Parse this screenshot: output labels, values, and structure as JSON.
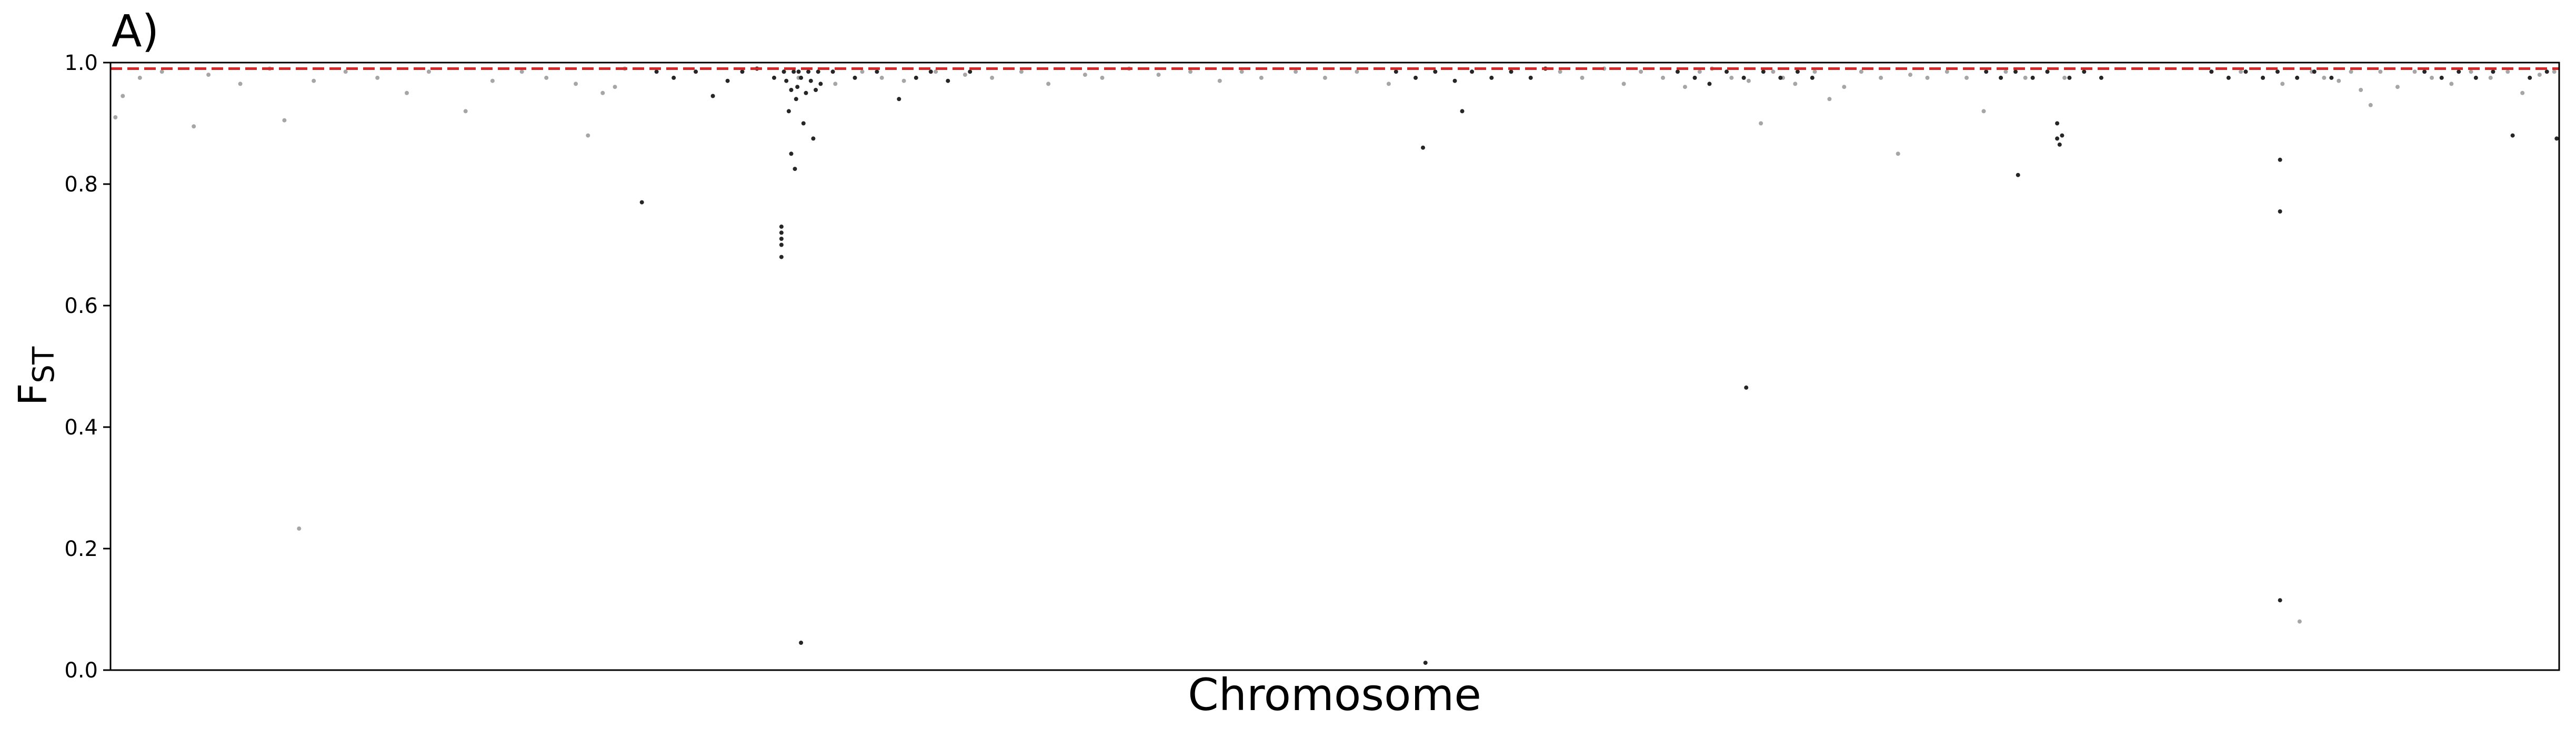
{
  "chart_data": {
    "type": "scatter",
    "panel_label": "A)",
    "xlabel": "Chromosome",
    "ylabel_main": "F",
    "ylabel_sub": "ST",
    "ylim": [
      0.0,
      1.0
    ],
    "x_ticks_shown": false,
    "grid": false,
    "threshold_line": {
      "value": 0.99,
      "color": "#d62728",
      "style": "dashed"
    },
    "alternating_colors": [
      "#a6a6a6",
      "#262626"
    ],
    "y_ticks": [
      {
        "value": 0.0,
        "label": "0.0"
      },
      {
        "value": 0.2,
        "label": "0.2"
      },
      {
        "value": 0.4,
        "label": "0.4"
      },
      {
        "value": 0.6,
        "label": "0.6"
      },
      {
        "value": 0.8,
        "label": "0.8"
      },
      {
        "value": 1.0,
        "label": "1.0"
      }
    ],
    "series": [
      {
        "color": "#a6a6a6",
        "points": [
          [
            0.2,
            0.91
          ],
          [
            0.5,
            0.945
          ],
          [
            1.2,
            0.975
          ],
          [
            2.1,
            0.985
          ],
          [
            3.4,
            0.895
          ],
          [
            4.0,
            0.98
          ],
          [
            5.3,
            0.965
          ],
          [
            6.5,
            0.99
          ],
          [
            7.1,
            0.905
          ],
          [
            7.7,
            0.233
          ],
          [
            8.3,
            0.97
          ],
          [
            9.6,
            0.985
          ],
          [
            10.9,
            0.975
          ],
          [
            12.1,
            0.95
          ],
          [
            13.0,
            0.985
          ],
          [
            14.5,
            0.92
          ],
          [
            15.6,
            0.97
          ],
          [
            16.8,
            0.985
          ],
          [
            17.8,
            0.975
          ],
          [
            19.0,
            0.965
          ],
          [
            19.5,
            0.88
          ],
          [
            20.1,
            0.95
          ],
          [
            20.6,
            0.96
          ],
          [
            21.0,
            0.99
          ],
          [
            27.5,
            0.985
          ],
          [
            28.1,
            0.975
          ],
          [
            29.6,
            0.965
          ],
          [
            30.7,
            0.985
          ],
          [
            31.5,
            0.975
          ],
          [
            32.4,
            0.97
          ],
          [
            33.7,
            0.985
          ],
          [
            34.9,
            0.98
          ],
          [
            36.0,
            0.975
          ],
          [
            37.2,
            0.985
          ],
          [
            38.3,
            0.965
          ],
          [
            39.8,
            0.98
          ],
          [
            40.5,
            0.975
          ],
          [
            41.6,
            0.99
          ],
          [
            42.8,
            0.98
          ],
          [
            44.1,
            0.985
          ],
          [
            45.3,
            0.97
          ],
          [
            46.2,
            0.985
          ],
          [
            47.0,
            0.975
          ],
          [
            48.4,
            0.985
          ],
          [
            49.6,
            0.975
          ],
          [
            50.9,
            0.985
          ],
          [
            52.2,
            0.965
          ],
          [
            59.2,
            0.985
          ],
          [
            60.1,
            0.975
          ],
          [
            61.0,
            0.99
          ],
          [
            61.8,
            0.965
          ],
          [
            62.5,
            0.985
          ],
          [
            63.4,
            0.975
          ],
          [
            64.3,
            0.96
          ],
          [
            64.9,
            0.985
          ],
          [
            65.4,
            0.99
          ],
          [
            66.2,
            0.975
          ],
          [
            66.9,
            0.97
          ],
          [
            67.4,
            0.9
          ],
          [
            67.9,
            0.985
          ],
          [
            68.3,
            0.975
          ],
          [
            68.8,
            0.965
          ],
          [
            69.6,
            0.985
          ],
          [
            70.2,
            0.94
          ],
          [
            70.8,
            0.96
          ],
          [
            71.5,
            0.985
          ],
          [
            72.3,
            0.975
          ],
          [
            73.0,
            0.85
          ],
          [
            73.5,
            0.98
          ],
          [
            74.2,
            0.975
          ],
          [
            75.0,
            0.985
          ],
          [
            75.8,
            0.975
          ],
          [
            76.5,
            0.92
          ],
          [
            77.4,
            0.985
          ],
          [
            78.2,
            0.975
          ],
          [
            79.1,
            0.985
          ],
          [
            79.8,
            0.975
          ],
          [
            87.0,
            0.985
          ],
          [
            87.9,
            0.975
          ],
          [
            88.7,
            0.965
          ],
          [
            89.4,
            0.08
          ],
          [
            89.9,
            0.985
          ],
          [
            90.4,
            0.975
          ],
          [
            91.0,
            0.97
          ],
          [
            91.5,
            0.985
          ],
          [
            91.9,
            0.955
          ],
          [
            92.3,
            0.93
          ],
          [
            92.7,
            0.985
          ],
          [
            93.4,
            0.96
          ],
          [
            94.1,
            0.985
          ],
          [
            94.8,
            0.975
          ],
          [
            95.6,
            0.965
          ],
          [
            96.4,
            0.985
          ],
          [
            97.2,
            0.975
          ],
          [
            97.9,
            0.985
          ],
          [
            98.5,
            0.95
          ],
          [
            99.2,
            0.98
          ],
          [
            99.8,
            0.985
          ]
        ]
      },
      {
        "color": "#262626",
        "points": [
          [
            21.7,
            0.77
          ],
          [
            22.3,
            0.985
          ],
          [
            23.0,
            0.975
          ],
          [
            23.9,
            0.985
          ],
          [
            24.6,
            0.945
          ],
          [
            25.2,
            0.97
          ],
          [
            25.8,
            0.985
          ],
          [
            26.4,
            0.99
          ],
          [
            27.1,
            0.975
          ],
          [
            27.5,
            0.985
          ],
          [
            27.6,
            0.97
          ],
          [
            27.7,
            0.92
          ],
          [
            27.8,
            0.955
          ],
          [
            27.9,
            0.985
          ],
          [
            28.0,
            0.94
          ],
          [
            28.05,
            0.96
          ],
          [
            28.1,
            0.985
          ],
          [
            28.2,
            0.975
          ],
          [
            28.3,
            0.9
          ],
          [
            28.4,
            0.95
          ],
          [
            28.5,
            0.985
          ],
          [
            28.6,
            0.97
          ],
          [
            28.7,
            0.875
          ],
          [
            28.8,
            0.955
          ],
          [
            28.9,
            0.985
          ],
          [
            29.0,
            0.965
          ],
          [
            27.8,
            0.85
          ],
          [
            27.95,
            0.825
          ],
          [
            28.2,
            0.045
          ],
          [
            27.4,
            0.73
          ],
          [
            27.4,
            0.72
          ],
          [
            27.4,
            0.71
          ],
          [
            27.4,
            0.7
          ],
          [
            27.4,
            0.68
          ],
          [
            29.5,
            0.985
          ],
          [
            30.4,
            0.975
          ],
          [
            31.3,
            0.985
          ],
          [
            32.2,
            0.94
          ],
          [
            32.9,
            0.975
          ],
          [
            33.5,
            0.985
          ],
          [
            34.2,
            0.97
          ],
          [
            35.1,
            0.985
          ],
          [
            52.5,
            0.985
          ],
          [
            53.3,
            0.975
          ],
          [
            54.1,
            0.985
          ],
          [
            54.9,
            0.97
          ],
          [
            55.6,
            0.985
          ],
          [
            56.4,
            0.975
          ],
          [
            57.2,
            0.985
          ],
          [
            58.0,
            0.975
          ],
          [
            58.6,
            0.99
          ],
          [
            53.6,
            0.86
          ],
          [
            53.7,
            0.012
          ],
          [
            55.2,
            0.92
          ],
          [
            64.0,
            0.985
          ],
          [
            64.7,
            0.975
          ],
          [
            65.3,
            0.965
          ],
          [
            66.0,
            0.985
          ],
          [
            66.7,
            0.975
          ],
          [
            66.8,
            0.465
          ],
          [
            67.5,
            0.985
          ],
          [
            68.2,
            0.975
          ],
          [
            68.9,
            0.985
          ],
          [
            69.5,
            0.975
          ],
          [
            76.6,
            0.985
          ],
          [
            77.2,
            0.975
          ],
          [
            77.8,
            0.985
          ],
          [
            77.9,
            0.815
          ],
          [
            78.5,
            0.975
          ],
          [
            79.1,
            0.985
          ],
          [
            79.5,
            0.875
          ],
          [
            79.6,
            0.865
          ],
          [
            79.7,
            0.88
          ],
          [
            79.5,
            0.9
          ],
          [
            80.0,
            0.975
          ],
          [
            80.6,
            0.985
          ],
          [
            81.3,
            0.975
          ],
          [
            85.8,
            0.985
          ],
          [
            86.5,
            0.975
          ],
          [
            87.2,
            0.985
          ],
          [
            87.9,
            0.975
          ],
          [
            88.5,
            0.985
          ],
          [
            88.6,
            0.755
          ],
          [
            88.6,
            0.115
          ],
          [
            88.6,
            0.84
          ],
          [
            89.3,
            0.975
          ],
          [
            90.0,
            0.985
          ],
          [
            90.7,
            0.975
          ],
          [
            94.5,
            0.985
          ],
          [
            95.2,
            0.975
          ],
          [
            95.9,
            0.985
          ],
          [
            96.6,
            0.975
          ],
          [
            97.3,
            0.985
          ],
          [
            98.1,
            0.88
          ],
          [
            98.8,
            0.975
          ],
          [
            99.5,
            0.985
          ],
          [
            99.9,
            0.875
          ]
        ]
      }
    ]
  }
}
